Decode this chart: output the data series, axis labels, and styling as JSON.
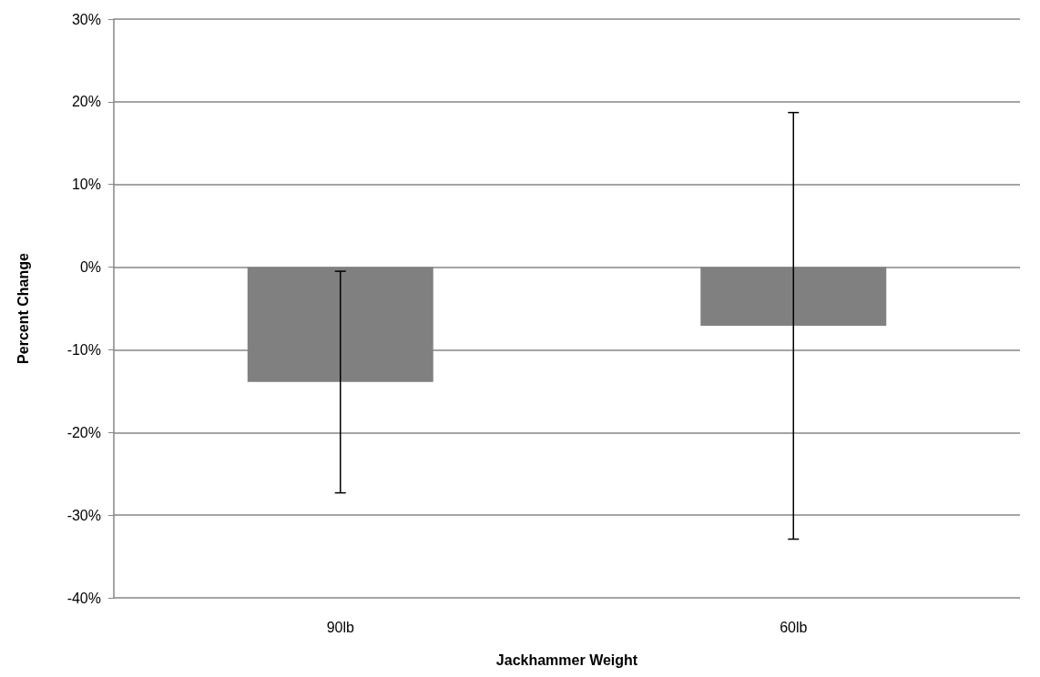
{
  "chart_data": {
    "type": "bar",
    "xlabel": "Jackhammer Weight",
    "ylabel": "Percent Change",
    "categories": [
      "90lb",
      "60lb"
    ],
    "values": [
      -13.9,
      -7.1
    ],
    "errors": [
      13.4,
      25.8
    ],
    "color": "#808080",
    "ylim": [
      -40,
      30
    ],
    "yticks": [
      {
        "value": -40,
        "label": "-40%"
      },
      {
        "value": -30,
        "label": "-30%"
      },
      {
        "value": -20,
        "label": "-20%"
      },
      {
        "value": -10,
        "label": "-10%"
      },
      {
        "value": 0,
        "label": "0%"
      },
      {
        "value": 10,
        "label": "10%"
      },
      {
        "value": 20,
        "label": "20%"
      },
      {
        "value": 30,
        "label": "30%"
      }
    ],
    "grid": "y"
  }
}
